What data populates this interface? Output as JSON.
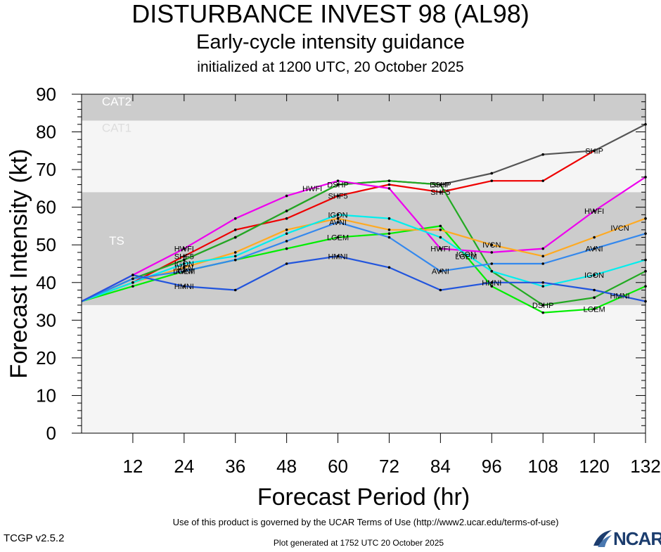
{
  "header": {
    "title": "DISTURBANCE INVEST 98 (AL98)",
    "subtitle": "Early-cycle intensity guidance",
    "init": "initialized at 1200 UTC, 20 October 2025"
  },
  "footer": {
    "terms": "Use of this product is governed by the UCAR Terms of Use (http://www2.ucar.edu/terms-of-use)",
    "version": "TCGP v2.5.2",
    "generated": "Plot generated at 1752 UTC   20 October 2025",
    "logo": "NCAR"
  },
  "chart_data": {
    "type": "line",
    "xlabel": "Forecast Period (hr)",
    "ylabel": "Forecast Intensity (kt)",
    "xlim": [
      0,
      132
    ],
    "ylim": [
      0,
      90
    ],
    "xticks": [
      12,
      24,
      36,
      48,
      60,
      72,
      84,
      96,
      108,
      120,
      132
    ],
    "yticks": [
      0,
      10,
      20,
      30,
      40,
      50,
      60,
      70,
      80,
      90
    ],
    "bands": [
      {
        "label": "TS",
        "from": 34,
        "to": 64,
        "color": "#cccccc"
      },
      {
        "label": "CAT1",
        "from": 64,
        "to": 83,
        "color": "#f5f5f5"
      },
      {
        "label": "CAT2",
        "from": 83,
        "to": 90,
        "color": "#cccccc"
      }
    ],
    "below_band_color": "#f5f5f5",
    "series": [
      {
        "name": "SHIP",
        "color": "#555555",
        "points": [
          [
            0,
            35
          ],
          [
            12,
            41
          ],
          [
            24,
            46
          ],
          [
            36,
            52
          ],
          [
            48,
            59
          ],
          [
            60,
            66
          ],
          [
            72,
            67
          ],
          [
            84,
            66
          ],
          [
            96,
            69
          ],
          [
            108,
            74
          ],
          [
            120,
            75
          ],
          [
            132,
            82
          ]
        ],
        "label_at": [
          84,
          120
        ]
      },
      {
        "name": "SHF5",
        "color": "#ee0000",
        "points": [
          [
            0,
            35
          ],
          [
            12,
            40
          ],
          [
            24,
            47
          ],
          [
            36,
            54
          ],
          [
            48,
            57
          ],
          [
            60,
            63
          ],
          [
            72,
            66
          ],
          [
            84,
            64
          ],
          [
            96,
            67
          ],
          [
            108,
            67
          ],
          [
            120,
            75
          ]
        ],
        "label_at": [
          24,
          60,
          84
        ]
      },
      {
        "name": "DSHP",
        "color": "#22aa22",
        "points": [
          [
            0,
            35
          ],
          [
            12,
            41
          ],
          [
            24,
            46
          ],
          [
            36,
            52
          ],
          [
            48,
            59
          ],
          [
            60,
            66
          ],
          [
            72,
            67
          ],
          [
            84,
            66
          ],
          [
            96,
            43
          ],
          [
            108,
            34
          ],
          [
            120,
            36
          ],
          [
            132,
            43
          ]
        ],
        "label_at": [
          60,
          84,
          108
        ]
      },
      {
        "name": "LGEM",
        "color": "#00ee00",
        "points": [
          [
            0,
            35
          ],
          [
            12,
            39
          ],
          [
            24,
            43
          ],
          [
            36,
            46
          ],
          [
            48,
            49
          ],
          [
            60,
            52
          ],
          [
            72,
            53
          ],
          [
            84,
            55
          ],
          [
            96,
            39
          ],
          [
            108,
            32
          ],
          [
            120,
            33
          ],
          [
            132,
            39
          ]
        ],
        "label_at": [
          24,
          60,
          90,
          120
        ]
      },
      {
        "name": "HWFI",
        "color": "#ee00ee",
        "points": [
          [
            0,
            35
          ],
          [
            12,
            42
          ],
          [
            24,
            49
          ],
          [
            36,
            57
          ],
          [
            48,
            63
          ],
          [
            60,
            67
          ],
          [
            72,
            65
          ],
          [
            84,
            49
          ],
          [
            96,
            48
          ],
          [
            108,
            49
          ],
          [
            120,
            59
          ],
          [
            132,
            68
          ]
        ],
        "label_at": [
          24,
          54,
          84,
          120
        ]
      },
      {
        "name": "IVCN",
        "color": "#ffaa22",
        "points": [
          [
            0,
            35
          ],
          [
            12,
            40
          ],
          [
            24,
            44
          ],
          [
            36,
            48
          ],
          [
            48,
            54
          ],
          [
            60,
            57
          ],
          [
            72,
            54
          ],
          [
            84,
            54
          ],
          [
            96,
            50
          ],
          [
            108,
            47
          ],
          [
            120,
            52
          ],
          [
            132,
            57
          ]
        ],
        "label_at": [
          24,
          96,
          126
        ]
      },
      {
        "name": "IGON",
        "color": "#00eeee",
        "points": [
          [
            0,
            35
          ],
          [
            12,
            40
          ],
          [
            24,
            45
          ],
          [
            36,
            47
          ],
          [
            48,
            53
          ],
          [
            60,
            58
          ],
          [
            72,
            57
          ],
          [
            84,
            52
          ],
          [
            96,
            43
          ],
          [
            108,
            39
          ],
          [
            120,
            42
          ],
          [
            132,
            46
          ]
        ],
        "label_at": [
          24,
          60,
          90,
          120
        ]
      },
      {
        "name": "AVNI",
        "color": "#3388ee",
        "points": [
          [
            0,
            35
          ],
          [
            12,
            41
          ],
          [
            24,
            43
          ],
          [
            36,
            46
          ],
          [
            48,
            51
          ],
          [
            60,
            56
          ],
          [
            72,
            52
          ],
          [
            84,
            43
          ],
          [
            96,
            45
          ],
          [
            108,
            45
          ],
          [
            120,
            49
          ],
          [
            132,
            53
          ]
        ],
        "label_at": [
          24,
          60,
          84,
          120
        ]
      },
      {
        "name": "HMNI",
        "color": "#2255dd",
        "points": [
          [
            0,
            35
          ],
          [
            12,
            42
          ],
          [
            24,
            39
          ],
          [
            36,
            38
          ],
          [
            48,
            45
          ],
          [
            60,
            47
          ],
          [
            72,
            44
          ],
          [
            84,
            38
          ],
          [
            96,
            40
          ],
          [
            108,
            40
          ],
          [
            120,
            38
          ],
          [
            132,
            35
          ]
        ],
        "label_at": [
          24,
          60,
          96,
          126
        ]
      }
    ]
  }
}
